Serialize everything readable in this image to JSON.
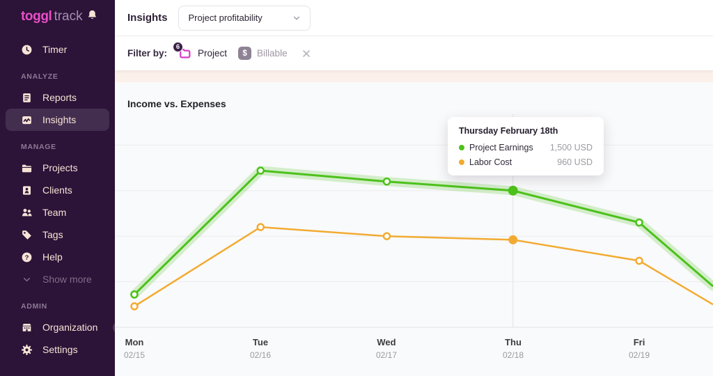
{
  "app": {
    "name_primary": "toggl",
    "name_secondary": "track"
  },
  "sidebar": {
    "timer": {
      "label": "Timer"
    },
    "sections": [
      {
        "label": "ANALYZE",
        "items": [
          {
            "label": "Reports"
          },
          {
            "label": "Insights"
          }
        ]
      },
      {
        "label": "MANAGE",
        "items": [
          {
            "label": "Projects"
          },
          {
            "label": "Clients"
          },
          {
            "label": "Team"
          },
          {
            "label": "Tags"
          },
          {
            "label": "Help"
          }
        ]
      }
    ],
    "show_more_label": "Show more",
    "admin_section": {
      "label": "ADMIN",
      "items": [
        {
          "label": "Organization",
          "badge": "Beta"
        },
        {
          "label": "Settings"
        }
      ]
    }
  },
  "header": {
    "title": "Insights",
    "view_selector": "Project profitability"
  },
  "filter_bar": {
    "label": "Filter by:",
    "filters": [
      {
        "label": "Project",
        "count": "6"
      },
      {
        "label": "Billable",
        "icon": "$"
      }
    ]
  },
  "chart_data": {
    "type": "line",
    "title": "Income vs. Expenses",
    "x_labels": [
      {
        "day": "Mon",
        "date": "02/15"
      },
      {
        "day": "Tue",
        "date": "02/16"
      },
      {
        "day": "Wed",
        "date": "02/17"
      },
      {
        "day": "Thu",
        "date": "02/18"
      },
      {
        "day": "Fri",
        "date": "02/19"
      }
    ],
    "y_axis": {
      "min": 0,
      "max": 2250,
      "gridline_step": 500,
      "unit": "USD",
      "tick_labels_visible": false
    },
    "series": [
      {
        "name": "Project Earnings",
        "color": "#4cc11a",
        "halo": true,
        "values": [
          360,
          1720,
          1600,
          1500,
          1150
        ],
        "edge_value": 450
      },
      {
        "name": "Labor Cost",
        "color": "#f2ab32",
        "halo": false,
        "values": [
          230,
          1100,
          1000,
          960,
          730
        ],
        "edge_value": 250
      }
    ],
    "highlighted_index": 3,
    "grid": "horizontal",
    "tooltip": {
      "title": "Thursday February 18th",
      "rows": [
        {
          "label": "Project Earnings",
          "value": "1,500 USD",
          "color": "#4cc11a"
        },
        {
          "label": "Labor Cost",
          "value": "960 USD",
          "color": "#f2ab32"
        }
      ]
    }
  }
}
